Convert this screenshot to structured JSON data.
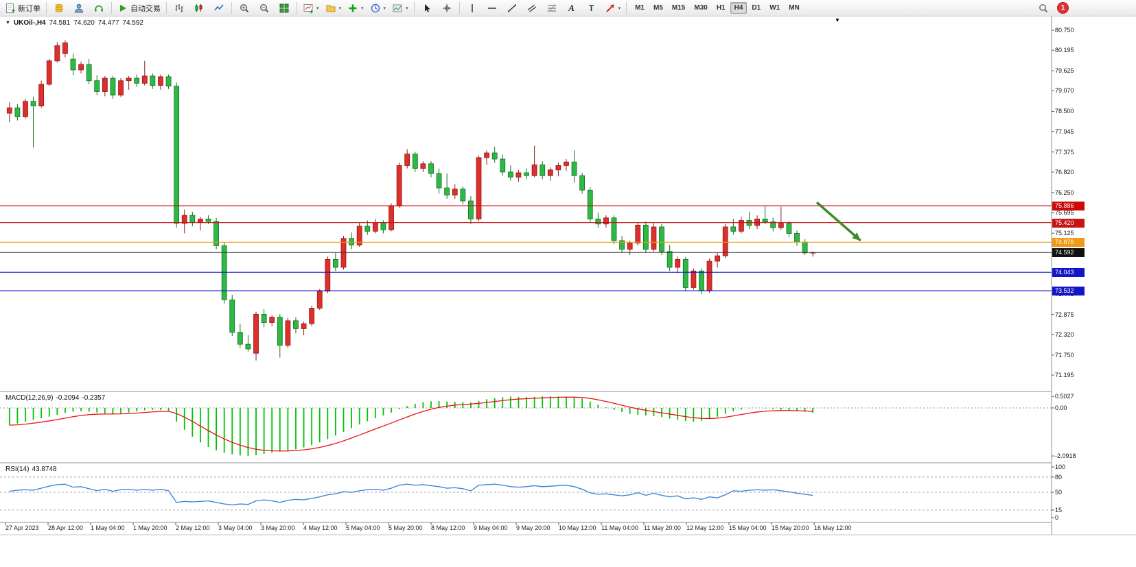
{
  "toolbar": {
    "new_order": "新订单",
    "auto_trading": "自动交易",
    "text_tool": "A",
    "label_tool": "T",
    "timeframes": [
      "M1",
      "M5",
      "M15",
      "M30",
      "H1",
      "H4",
      "D1",
      "W1",
      "MN"
    ],
    "active_timeframe": "H4",
    "notification_count": "1"
  },
  "chart_title": {
    "symbol": "UKOil-,H4",
    "open": "74.581",
    "high": "74.620",
    "low": "74.477",
    "close": "74.592"
  },
  "chart_data": {
    "type": "candlestick",
    "title": "UKOil-,H4",
    "symbol": "UKOil-",
    "timeframe": "H4",
    "bull_color": "#dd2f2c",
    "bull_border": "#8f1a1a",
    "bear_color": "#2eb944",
    "bear_border": "#156e24",
    "candles": [
      [
        78.45,
        78.75,
        78.2,
        78.6
      ],
      [
        78.6,
        78.7,
        78.25,
        78.35
      ],
      [
        78.35,
        78.85,
        78.3,
        78.78
      ],
      [
        78.78,
        78.9,
        77.5,
        78.65
      ],
      [
        78.65,
        79.35,
        78.6,
        79.25
      ],
      [
        79.25,
        79.95,
        79.2,
        79.9
      ],
      [
        79.9,
        80.42,
        79.85,
        80.32
      ],
      [
        80.1,
        80.47,
        80.0,
        80.4
      ],
      [
        79.95,
        80.1,
        79.5,
        79.65
      ],
      [
        79.65,
        79.88,
        79.55,
        79.8
      ],
      [
        79.8,
        79.95,
        79.25,
        79.35
      ],
      [
        79.35,
        79.5,
        78.95,
        79.05
      ],
      [
        79.05,
        79.48,
        78.92,
        79.42
      ],
      [
        79.42,
        79.48,
        78.85,
        78.95
      ],
      [
        78.95,
        79.42,
        78.9,
        79.35
      ],
      [
        79.35,
        79.48,
        79.1,
        79.42
      ],
      [
        79.42,
        79.52,
        79.18,
        79.28
      ],
      [
        79.28,
        79.9,
        79.22,
        79.48
      ],
      [
        79.48,
        79.55,
        79.12,
        79.22
      ],
      [
        79.22,
        79.52,
        79.1,
        79.46
      ],
      [
        79.46,
        79.52,
        79.12,
        79.2
      ],
      [
        79.2,
        79.3,
        75.28,
        75.4
      ],
      [
        75.4,
        75.78,
        75.12,
        75.62
      ],
      [
        75.62,
        75.72,
        75.32,
        75.42
      ],
      [
        75.42,
        75.58,
        75.2,
        75.52
      ],
      [
        75.52,
        75.62,
        75.38,
        75.45
      ],
      [
        75.45,
        75.55,
        74.68,
        74.78
      ],
      [
        74.78,
        74.88,
        73.18,
        73.28
      ],
      [
        73.28,
        73.42,
        72.28,
        72.38
      ],
      [
        72.38,
        72.62,
        71.95,
        72.05
      ],
      [
        72.05,
        72.3,
        71.85,
        71.92
      ],
      [
        71.8,
        72.95,
        71.6,
        72.88
      ],
      [
        72.88,
        73.02,
        72.52,
        72.65
      ],
      [
        72.65,
        72.85,
        72.55,
        72.8
      ],
      [
        72.8,
        72.88,
        71.68,
        72.02
      ],
      [
        72.02,
        72.78,
        71.95,
        72.7
      ],
      [
        72.7,
        72.8,
        72.35,
        72.48
      ],
      [
        72.48,
        72.68,
        72.3,
        72.62
      ],
      [
        72.62,
        73.12,
        72.55,
        73.05
      ],
      [
        73.05,
        73.58,
        73.0,
        73.52
      ],
      [
        73.52,
        74.48,
        73.46,
        74.4
      ],
      [
        74.4,
        74.58,
        74.08,
        74.18
      ],
      [
        74.18,
        75.05,
        74.12,
        74.98
      ],
      [
        74.98,
        75.15,
        74.68,
        74.8
      ],
      [
        74.8,
        75.42,
        74.75,
        75.32
      ],
      [
        75.32,
        75.48,
        75.08,
        75.18
      ],
      [
        75.18,
        75.52,
        75.12,
        75.42
      ],
      [
        75.42,
        75.48,
        75.12,
        75.22
      ],
      [
        75.22,
        75.95,
        75.18,
        75.88
      ],
      [
        75.88,
        77.08,
        75.82,
        77.0
      ],
      [
        77.0,
        77.45,
        76.92,
        77.32
      ],
      [
        77.32,
        77.38,
        76.82,
        76.92
      ],
      [
        76.92,
        77.12,
        76.82,
        77.05
      ],
      [
        77.05,
        77.12,
        76.68,
        76.78
      ],
      [
        76.78,
        76.92,
        76.22,
        76.38
      ],
      [
        76.38,
        76.78,
        76.08,
        76.18
      ],
      [
        76.18,
        76.48,
        76.08,
        76.35
      ],
      [
        76.35,
        76.42,
        75.92,
        76.02
      ],
      [
        76.02,
        76.15,
        75.38,
        75.52
      ],
      [
        75.52,
        77.28,
        75.46,
        77.22
      ],
      [
        77.22,
        77.42,
        77.02,
        77.35
      ],
      [
        77.35,
        77.52,
        77.08,
        77.18
      ],
      [
        77.18,
        77.3,
        76.72,
        76.82
      ],
      [
        76.82,
        77.0,
        76.58,
        76.68
      ],
      [
        76.68,
        76.88,
        76.55,
        76.8
      ],
      [
        76.8,
        76.92,
        76.62,
        76.72
      ],
      [
        76.72,
        77.55,
        76.68,
        77.02
      ],
      [
        77.02,
        77.12,
        76.62,
        76.72
      ],
      [
        76.72,
        76.95,
        76.58,
        76.88
      ],
      [
        76.88,
        77.08,
        76.7,
        77.0
      ],
      [
        77.0,
        77.18,
        76.85,
        77.1
      ],
      [
        77.1,
        77.42,
        76.52,
        76.72
      ],
      [
        76.72,
        76.8,
        76.22,
        76.32
      ],
      [
        76.32,
        76.4,
        75.42,
        75.52
      ],
      [
        75.52,
        75.7,
        75.28,
        75.38
      ],
      [
        75.38,
        75.62,
        75.28,
        75.55
      ],
      [
        75.55,
        75.62,
        74.82,
        74.92
      ],
      [
        74.92,
        75.05,
        74.58,
        74.68
      ],
      [
        74.68,
        74.92,
        74.52,
        74.85
      ],
      [
        74.85,
        75.42,
        74.78,
        75.35
      ],
      [
        75.35,
        75.45,
        74.58,
        74.68
      ],
      [
        74.68,
        75.42,
        74.62,
        75.3
      ],
      [
        75.3,
        75.38,
        74.52,
        74.62
      ],
      [
        74.62,
        74.8,
        74.08,
        74.18
      ],
      [
        74.18,
        74.48,
        74.02,
        74.4
      ],
      [
        74.4,
        74.46,
        73.52,
        73.62
      ],
      [
        73.62,
        74.15,
        73.56,
        74.08
      ],
      [
        74.08,
        74.15,
        73.44,
        73.54
      ],
      [
        73.54,
        74.42,
        73.48,
        74.35
      ],
      [
        74.35,
        74.58,
        74.18,
        74.5
      ],
      [
        74.5,
        75.38,
        74.44,
        75.3
      ],
      [
        75.3,
        75.52,
        75.08,
        75.18
      ],
      [
        75.18,
        75.58,
        75.12,
        75.48
      ],
      [
        75.48,
        75.72,
        75.24,
        75.34
      ],
      [
        75.34,
        75.62,
        75.24,
        75.52
      ],
      [
        75.52,
        75.88,
        75.38,
        75.44
      ],
      [
        75.44,
        75.56,
        75.18,
        75.28
      ],
      [
        75.28,
        75.86,
        75.22,
        75.4
      ],
      [
        75.4,
        75.46,
        75.02,
        75.12
      ],
      [
        75.12,
        75.2,
        74.78,
        74.88
      ],
      [
        74.88,
        74.96,
        74.52,
        74.58
      ],
      [
        74.581,
        74.62,
        74.477,
        74.592
      ]
    ],
    "current_price": 74.592,
    "hlines": [
      {
        "price": 75.886,
        "color": "#cc0a0a",
        "label": "75.886",
        "label_bg": "#cc0a0a"
      },
      {
        "price": 75.42,
        "color": "#cc0a0a",
        "label": "75.420",
        "label_bg": "#c81414"
      },
      {
        "price": 74.876,
        "color": "#ed9b18",
        "label": "74.876",
        "label_bg": "#ed9b18"
      },
      {
        "price": 74.592,
        "color": "#3a3a3a",
        "label": "74.592",
        "label_bg": "#101010"
      },
      {
        "price": 74.043,
        "color": "#1515c8",
        "label": "74.043",
        "label_bg": "#1515c8"
      },
      {
        "price": 73.532,
        "color": "#1515c8",
        "label": "73.532",
        "label_bg": "#1515c8"
      }
    ],
    "arrow": {
      "from": {
        "index": 101.5,
        "price": 75.98
      },
      "to": {
        "index": 107.0,
        "price": 74.92
      },
      "color": "#3c8a28"
    },
    "price_axis": {
      "labels": [
        "80.750",
        "80.195",
        "79.625",
        "79.070",
        "78.500",
        "77.945",
        "77.375",
        "76.820",
        "76.250",
        "75.695",
        "75.125",
        "74.570",
        "74.000",
        "73.445",
        "72.875",
        "72.320",
        "71.750",
        "71.195"
      ]
    },
    "time_labels": [
      "27 Apr 2023",
      "28 Apr 12:00",
      "1 May 04:00",
      "1 May 20:00",
      "2 May 12:00",
      "3 May 04:00",
      "3 May 20:00",
      "4 May 12:00",
      "5 May 04:00",
      "5 May 20:00",
      "8 May 12:00",
      "9 May 04:00",
      "9 May 20:00",
      "10 May 12:00",
      "11 May 04:00",
      "11 May 20:00",
      "12 May 12:00",
      "15 May 04:00",
      "15 May 20:00",
      "16 May 12:00"
    ],
    "macd": {
      "name": "MACD(12,26,9)",
      "main_value": "-0.2094",
      "signal_value": "-0.2357",
      "histogram_color": "#00c400",
      "signal_color": "#ee1111",
      "axis": [
        {
          "text": "0.5027",
          "value": 0.5027
        },
        {
          "text": "0.00",
          "value": 0
        },
        {
          "text": "-2.0918",
          "value": -2.0918
        }
      ],
      "values": [
        -0.75,
        -0.68,
        -0.6,
        -0.52,
        -0.45,
        -0.38,
        -0.3,
        -0.22,
        -0.16,
        -0.14,
        -0.16,
        -0.2,
        -0.24,
        -0.26,
        -0.24,
        -0.2,
        -0.15,
        -0.1,
        -0.08,
        -0.09,
        -0.12,
        -0.6,
        -0.95,
        -1.25,
        -1.5,
        -1.7,
        -1.85,
        -1.95,
        -2.02,
        -2.07,
        -2.0918,
        -2.06,
        -2.0,
        -1.95,
        -1.9,
        -1.86,
        -1.8,
        -1.72,
        -1.62,
        -1.5,
        -1.36,
        -1.2,
        -1.04,
        -0.88,
        -0.72,
        -0.58,
        -0.45,
        -0.33,
        -0.2,
        -0.05,
        0.08,
        0.18,
        0.25,
        0.29,
        0.3,
        0.28,
        0.27,
        0.25,
        0.24,
        0.3,
        0.38,
        0.43,
        0.47,
        0.49,
        0.48,
        0.47,
        0.48,
        0.5,
        0.5027,
        0.5,
        0.49,
        0.47,
        0.4,
        0.28,
        0.14,
        0.02,
        -0.08,
        -0.18,
        -0.26,
        -0.3,
        -0.33,
        -0.36,
        -0.4,
        -0.46,
        -0.52,
        -0.57,
        -0.6,
        -0.56,
        -0.48,
        -0.38,
        -0.26,
        -0.15,
        -0.07,
        -0.02,
        0.0,
        -0.02,
        -0.05,
        -0.08,
        -0.11,
        -0.14,
        -0.17,
        -0.2094
      ]
    },
    "rsi": {
      "name": "RSI(14)",
      "value": "43.8748",
      "color": "#3f87d9",
      "levels": [
        80,
        50,
        15
      ],
      "axis": [
        {
          "text": "100",
          "value": 100
        },
        {
          "text": "80",
          "value": 80
        },
        {
          "text": "50",
          "value": 50
        },
        {
          "text": "15",
          "value": 15
        },
        {
          "text": "0",
          "value": 0
        }
      ],
      "values": [
        52,
        54,
        55,
        54,
        58,
        62,
        65,
        66,
        60,
        61,
        57,
        53,
        56,
        52,
        55,
        56,
        54,
        56,
        54,
        56,
        53,
        30,
        32,
        31,
        32,
        33,
        30,
        27,
        25,
        27,
        26,
        33,
        35,
        33,
        30,
        34,
        36,
        35,
        38,
        41,
        45,
        47,
        51,
        50,
        53,
        55,
        56,
        54,
        58,
        64,
        66,
        64,
        65,
        63,
        61,
        58,
        59,
        57,
        53,
        64,
        65,
        66,
        64,
        61,
        60,
        61,
        63,
        61,
        62,
        63,
        64,
        61,
        56,
        49,
        46,
        47,
        45,
        43,
        45,
        49,
        44,
        48,
        44,
        41,
        43,
        37,
        39,
        36,
        41,
        39,
        45,
        53,
        52,
        54,
        55,
        54,
        55,
        53,
        51,
        48,
        46,
        43.87
      ]
    }
  }
}
